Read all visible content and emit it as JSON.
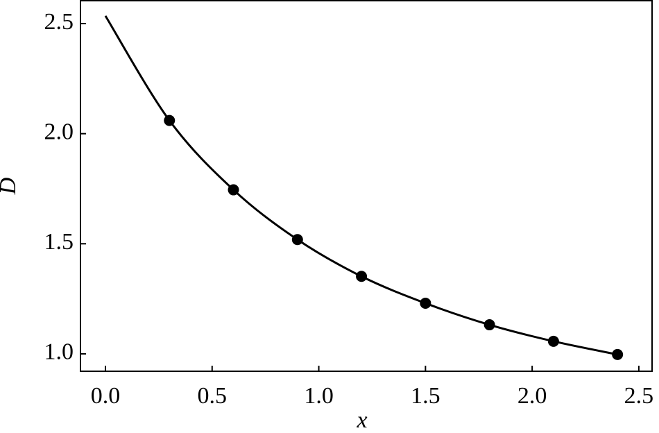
{
  "chart_data": {
    "type": "scatter-line",
    "x_label": "x",
    "y_label": "D",
    "xlim": [
      -0.117,
      2.562
    ],
    "ylim": [
      0.921,
      2.604
    ],
    "xticks": [
      {
        "value": 0,
        "label": "0.0"
      },
      {
        "value": 0.5,
        "label": "0.5"
      },
      {
        "value": 1,
        "label": "1.0"
      },
      {
        "value": 1.5,
        "label": "1.5"
      },
      {
        "value": 2,
        "label": "2.0"
      },
      {
        "value": 2.5,
        "label": "2.5"
      }
    ],
    "yticks": [
      {
        "value": 1,
        "label": "1.0"
      },
      {
        "value": 1.5,
        "label": "1.5"
      },
      {
        "value": 2,
        "label": "2.0"
      },
      {
        "value": 2.5,
        "label": "2.5"
      }
    ],
    "series": [
      {
        "kind": "line",
        "color": "#000000",
        "x": [
          0,
          0.3,
          0.6,
          0.9,
          1.2,
          1.5,
          1.8,
          2.1,
          2.4
        ],
        "values": [
          2.535,
          2.06,
          1.745,
          1.519,
          1.352,
          1.23,
          1.132,
          1.057,
          0.997
        ]
      },
      {
        "kind": "points",
        "color": "#000000",
        "x": [
          0.3,
          0.6,
          0.9,
          1.2,
          1.5,
          1.8,
          2.1,
          2.4
        ],
        "values": [
          2.06,
          1.745,
          1.519,
          1.352,
          1.23,
          1.132,
          1.057,
          0.997
        ]
      }
    ]
  }
}
